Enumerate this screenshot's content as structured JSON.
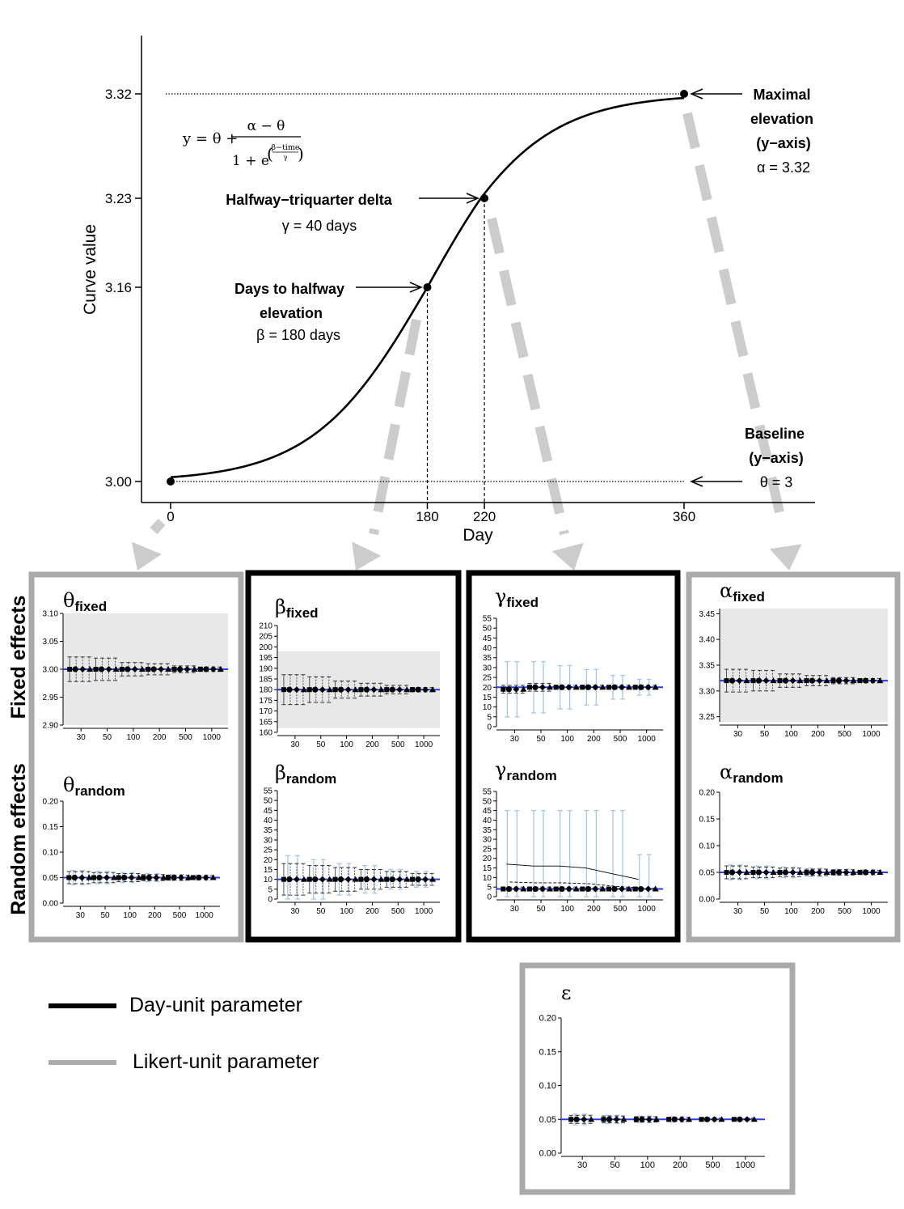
{
  "chart_data": {
    "main": {
      "type": "line",
      "ylabel": "Curve value",
      "xlabel": "Day",
      "xticks": [
        "0",
        "180",
        "220",
        "360"
      ],
      "yticks": [
        "3.00",
        "3.16",
        "3.23",
        "3.32"
      ],
      "xlim": [
        0,
        360
      ],
      "ylim": [
        3.0,
        3.32
      ],
      "params": {
        "theta": 3.0,
        "alpha": 3.32,
        "beta": 180,
        "gamma": 40
      },
      "key_points": [
        {
          "x": 0,
          "y": 3.0
        },
        {
          "x": 180,
          "y": 3.16
        },
        {
          "x": 220,
          "y": 3.23
        },
        {
          "x": 360,
          "y": 3.32
        }
      ],
      "formula": {
        "lhs": "y = θ +",
        "numerator": "α − θ",
        "denominator": "1 + e",
        "exponent_top": "β−time",
        "exponent_bottom": "γ"
      },
      "annotations": {
        "maximal": [
          "Maximal",
          "elevation",
          "(y−axis)",
          "α = 3.32"
        ],
        "halfway_triquarter": [
          "Halfway−triquarter delta",
          "γ = 40 days"
        ],
        "days_half": [
          "Days to halfway",
          "elevation",
          "β = 180 days"
        ],
        "baseline": [
          "Baseline",
          "(y−axis)",
          "θ = 3"
        ]
      }
    },
    "row_labels": {
      "fixed": "Fixed effects",
      "random": "Random effects"
    },
    "small_x_ticks": [
      "30",
      "50",
      "100",
      "200",
      "500",
      "1000"
    ],
    "small_panels": [
      {
        "id": "theta-fixed",
        "sym": "θ",
        "sub": "fixed",
        "ylim": [
          2.9,
          3.1
        ],
        "yticks": [
          "2.90",
          "2.95",
          "3.00",
          "3.05",
          "3.10"
        ],
        "ytickvals": [
          2.9,
          2.95,
          3.0,
          3.05,
          3.1
        ],
        "truth": 3.0,
        "shade": [
          2.9,
          3.1
        ],
        "err": [
          0.022,
          0.02,
          0.012,
          0.01,
          0.006,
          0.004
        ],
        "light_err": [
          0,
          0,
          0,
          0,
          0,
          0
        ],
        "estimates": [
          3.0,
          3.0,
          3.0,
          3.0,
          3.0,
          3.0
        ]
      },
      {
        "id": "theta-random",
        "sym": "θ",
        "sub": "random",
        "ylim": [
          0,
          0.2
        ],
        "yticks": [
          "0.00",
          "0.05",
          "0.10",
          "0.15",
          "0.20"
        ],
        "ytickvals": [
          0,
          0.05,
          0.1,
          0.15,
          0.2
        ],
        "truth": 0.05,
        "shade": null,
        "err": [
          0.012,
          0.01,
          0.008,
          0.006,
          0.005,
          0.004
        ],
        "light_err": [
          0.014,
          0.012,
          0.01,
          0.008,
          0.006,
          0.005
        ],
        "estimates": [
          0.05,
          0.05,
          0.05,
          0.05,
          0.05,
          0.05
        ]
      },
      {
        "id": "beta-fixed",
        "sym": "β",
        "sub": "fixed",
        "ylim": [
          160,
          210
        ],
        "yticks": [
          "160",
          "165",
          "170",
          "175",
          "180",
          "185",
          "190",
          "195",
          "200",
          "205",
          "210"
        ],
        "ytickvals": [
          160,
          165,
          170,
          175,
          180,
          185,
          190,
          195,
          200,
          205,
          210
        ],
        "truth": 180,
        "shade": [
          162,
          198
        ],
        "err": [
          7,
          6,
          4,
          3,
          2,
          1
        ],
        "light_err": [
          0,
          0,
          0,
          0,
          0,
          0
        ],
        "estimates": [
          180,
          180,
          180,
          180,
          180,
          180
        ]
      },
      {
        "id": "beta-random",
        "sym": "β",
        "sub": "random",
        "ylim": [
          0,
          55
        ],
        "yticks": [
          "0",
          "5",
          "10",
          "15",
          "20",
          "25",
          "30",
          "35",
          "40",
          "45",
          "50",
          "55"
        ],
        "ytickvals": [
          0,
          5,
          10,
          15,
          20,
          25,
          30,
          35,
          40,
          45,
          50,
          55
        ],
        "truth": 10,
        "shade": null,
        "err": [
          8,
          7,
          6,
          5,
          4,
          3
        ],
        "light_err": [
          12,
          10,
          8,
          7,
          5,
          4
        ],
        "estimates": [
          10,
          10,
          10,
          10,
          10,
          10
        ]
      },
      {
        "id": "gamma-fixed",
        "sym": "γ",
        "sub": "fixed",
        "ylim": [
          0,
          55
        ],
        "yticks": [
          "0",
          "5",
          "10",
          "15",
          "20",
          "25",
          "30",
          "35",
          "40",
          "45",
          "50",
          "55"
        ],
        "ytickvals": [
          0,
          5,
          10,
          15,
          20,
          25,
          30,
          35,
          40,
          45,
          50,
          55
        ],
        "truth": 20,
        "shade": null,
        "err": [
          2,
          2,
          1,
          1,
          1,
          1
        ],
        "light_err": [
          14,
          13,
          11,
          9,
          6,
          4
        ],
        "estimates": [
          19,
          20,
          20,
          20,
          20,
          20
        ]
      },
      {
        "id": "gamma-random",
        "sym": "γ",
        "sub": "random",
        "ylim": [
          0,
          55
        ],
        "yticks": [
          "0",
          "5",
          "10",
          "15",
          "20",
          "25",
          "30",
          "35",
          "40",
          "45",
          "50",
          "55"
        ],
        "ytickvals": [
          0,
          5,
          10,
          15,
          20,
          25,
          30,
          35,
          40,
          45,
          50,
          55
        ],
        "truth": 4,
        "shade": null,
        "err": [
          1,
          1,
          1,
          1,
          0.5,
          0.5
        ],
        "light_err": [
          41,
          41,
          41,
          41,
          41,
          18
        ],
        "estimates": [
          4,
          4,
          4,
          4,
          4,
          4
        ],
        "biased": [
          17,
          16,
          16,
          15,
          12,
          9
        ]
      },
      {
        "id": "alpha-fixed",
        "sym": "α",
        "sub": "fixed",
        "ylim": [
          3.24,
          3.46
        ],
        "yticks": [
          "3.25",
          "3.30",
          "3.35",
          "3.40",
          "3.45"
        ],
        "ytickvals": [
          3.25,
          3.3,
          3.35,
          3.4,
          3.45
        ],
        "truth": 3.32,
        "shade": [
          3.24,
          3.46
        ],
        "err": [
          0.022,
          0.02,
          0.013,
          0.01,
          0.006,
          0.004
        ],
        "light_err": [
          0,
          0,
          0,
          0,
          0,
          0
        ],
        "estimates": [
          3.32,
          3.32,
          3.32,
          3.32,
          3.32,
          3.32
        ]
      },
      {
        "id": "alpha-random",
        "sym": "α",
        "sub": "random",
        "ylim": [
          0,
          0.2
        ],
        "yticks": [
          "0.00",
          "0.05",
          "0.10",
          "0.15",
          "0.20"
        ],
        "ytickvals": [
          0,
          0.05,
          0.1,
          0.15,
          0.2
        ],
        "truth": 0.05,
        "shade": null,
        "err": [
          0.012,
          0.01,
          0.008,
          0.006,
          0.005,
          0.004
        ],
        "light_err": [
          0.014,
          0.012,
          0.01,
          0.008,
          0.006,
          0.005
        ],
        "estimates": [
          0.05,
          0.05,
          0.05,
          0.05,
          0.05,
          0.05
        ]
      },
      {
        "id": "epsilon",
        "sym": "ε",
        "sub": "",
        "ylim": [
          0,
          0.2
        ],
        "yticks": [
          "0.00",
          "0.05",
          "0.10",
          "0.15",
          "0.20"
        ],
        "ytickvals": [
          0,
          0.05,
          0.1,
          0.15,
          0.2
        ],
        "truth": 0.05,
        "shade": null,
        "err": [
          0.006,
          0.005,
          0.004,
          0.003,
          0.002,
          0.002
        ],
        "light_err": [
          0.008,
          0.006,
          0.005,
          0.004,
          0.003,
          0.002
        ],
        "estimates": [
          0.05,
          0.05,
          0.05,
          0.05,
          0.05,
          0.05
        ]
      }
    ],
    "legend": [
      {
        "label": "Day-unit parameter",
        "color": "#000000"
      },
      {
        "label": "Likert-unit parameter",
        "color": "#aaaaaa"
      }
    ],
    "colors": {
      "truth_line": "#2b3cf0",
      "shade": "#e8e8e8",
      "arrow": "#cccccc",
      "light_err": "#a6c8e6",
      "likert_border": "#aaaaaa",
      "day_border": "#000000"
    }
  }
}
